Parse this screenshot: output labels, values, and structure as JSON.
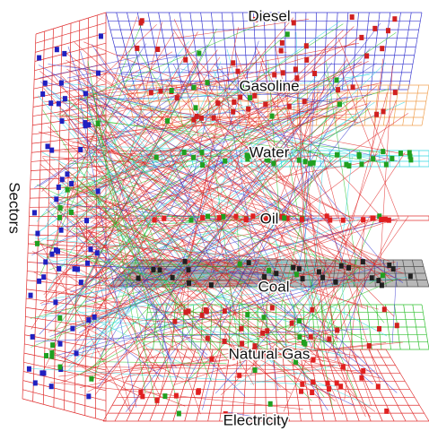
{
  "side_label": "Sectors",
  "layers": [
    {
      "label": "Diesel"
    },
    {
      "label": "Gasoline"
    },
    {
      "label": "Water"
    },
    {
      "label": "Oil"
    },
    {
      "label": "Coal"
    },
    {
      "label": "Natural Gas"
    },
    {
      "label": "Electricity"
    }
  ]
}
